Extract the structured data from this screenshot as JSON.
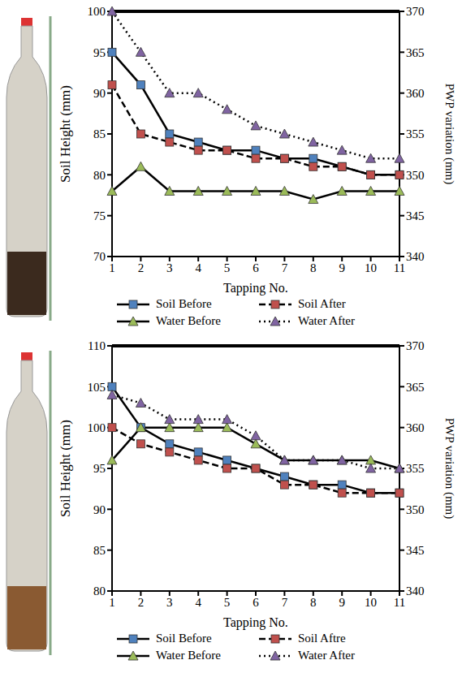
{
  "chart_data": [
    {
      "type": "line",
      "x_label": "Tapping No.",
      "y_label": "Soil Height (mm)",
      "y2_label": "PWP variation (mm)",
      "x": [
        1,
        2,
        3,
        4,
        5,
        6,
        7,
        8,
        9,
        10,
        11
      ],
      "xlim": [
        1,
        11
      ],
      "xticks": [
        1,
        2,
        3,
        4,
        5,
        6,
        7,
        8,
        9,
        10,
        11
      ],
      "ylim": [
        70,
        100
      ],
      "yticks": [
        70,
        75,
        80,
        85,
        90,
        95,
        100
      ],
      "y2lim": [
        340,
        370
      ],
      "y2ticks": [
        340,
        345,
        350,
        355,
        360,
        365,
        370
      ],
      "grid": false,
      "legend": "bottom",
      "series": [
        {
          "name": "Soil Before",
          "color": "#4f81bd",
          "marker": "square",
          "line_style": "solid",
          "values": [
            95,
            91,
            85,
            84,
            83,
            83,
            82,
            82,
            81,
            80,
            80
          ]
        },
        {
          "name": "Soil After",
          "color": "#c0504d",
          "marker": "square",
          "line_style": "dashed",
          "values": [
            91,
            85,
            84,
            83,
            83,
            82,
            82,
            81,
            81,
            80,
            80
          ]
        },
        {
          "name": "Water Before",
          "color": "#9bbb59",
          "marker": "triangle",
          "line_style": "solid",
          "axis": "y2",
          "values": [
            348,
            351,
            348,
            348,
            348,
            348,
            348,
            347,
            348,
            348,
            348
          ]
        },
        {
          "name": "Water After",
          "color": "#8064a2",
          "marker": "triangle",
          "line_style": "dotted",
          "axis": "y2",
          "values": [
            370,
            365,
            360,
            360,
            358,
            356,
            355,
            354,
            353,
            352,
            352
          ]
        }
      ]
    },
    {
      "type": "line",
      "x_label": "Tapping No.",
      "y_label": "Soil Height (mm)",
      "y2_label": "PWP variation (mm)",
      "x": [
        1,
        2,
        3,
        4,
        5,
        6,
        7,
        8,
        9,
        10,
        11
      ],
      "xlim": [
        1,
        11
      ],
      "xticks": [
        1,
        2,
        3,
        4,
        5,
        6,
        7,
        8,
        9,
        10,
        11
      ],
      "ylim": [
        80,
        110
      ],
      "yticks": [
        80,
        85,
        90,
        95,
        100,
        105,
        110
      ],
      "y2lim": [
        340,
        370
      ],
      "y2ticks": [
        340,
        345,
        350,
        355,
        360,
        365,
        370
      ],
      "grid": false,
      "legend": "bottom",
      "series": [
        {
          "name": "Soil Before",
          "color": "#4f81bd",
          "marker": "square",
          "line_style": "solid",
          "values": [
            105,
            100,
            98,
            97,
            96,
            95,
            94,
            93,
            93,
            92,
            92
          ]
        },
        {
          "name": "Soil Aftre",
          "color": "#c0504d",
          "marker": "square",
          "line_style": "dashed",
          "values": [
            100,
            98,
            97,
            96,
            95,
            95,
            93,
            93,
            92,
            92,
            92
          ]
        },
        {
          "name": "Water Before",
          "color": "#9bbb59",
          "marker": "triangle",
          "line_style": "solid",
          "axis": "y2",
          "values": [
            356,
            360,
            360,
            360,
            360,
            358,
            356,
            356,
            356,
            356,
            355
          ]
        },
        {
          "name": "Water After",
          "color": "#8064a2",
          "marker": "triangle",
          "line_style": "dotted",
          "axis": "y2",
          "values": [
            364,
            363,
            361,
            361,
            361,
            359,
            356,
            356,
            356,
            355,
            355
          ]
        }
      ]
    }
  ]
}
